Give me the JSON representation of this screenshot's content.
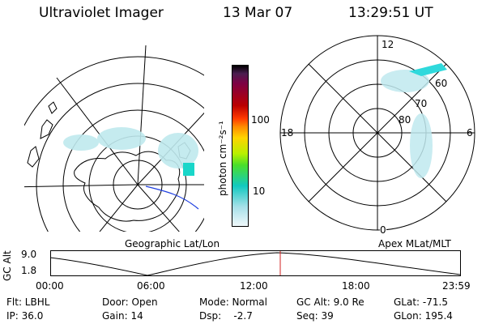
{
  "header": {
    "title": "Ultraviolet Imager",
    "date": "13 Mar 07",
    "time": "13:29:51 UT"
  },
  "colorbar": {
    "label": "photon cm⁻²s⁻¹",
    "ticks": [
      "100",
      "10"
    ]
  },
  "geo_panel": {
    "label": "Geographic Lat/Lon"
  },
  "mlt_panel": {
    "label": "Apex MLat/MLT",
    "mlt_labels": {
      "top": "12",
      "left": "18",
      "right": "6",
      "bottom": "0"
    },
    "lat_labels": [
      "60",
      "70",
      "80"
    ]
  },
  "orbit": {
    "axis_label": "GC Alt",
    "y_ticks": [
      "9.0",
      "1.8"
    ],
    "x_ticks": [
      "00:00",
      "06:00",
      "12:00",
      "18:00",
      "23:59"
    ]
  },
  "footer": {
    "filter": "Flt: LBHL",
    "ip": "IP: 36.0",
    "door": "Door: Open",
    "gain": "Gain: 14",
    "mode": "Mode: Normal",
    "dsp": "Dsp:    -2.7",
    "gc_alt": "GC Alt: 9.0 Re",
    "seq": "Seq: 39",
    "glat": "GLat: -71.5",
    "glon": "GLon: 195.4"
  }
}
